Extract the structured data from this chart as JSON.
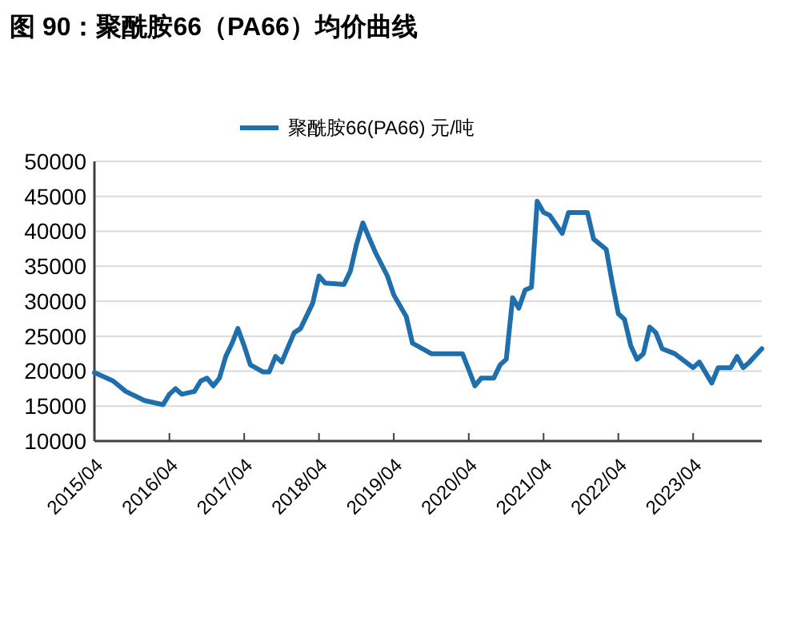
{
  "chart_data": {
    "type": "line",
    "title": "图 90：聚酰胺66（PA66）均价曲线",
    "x": [
      "2015-04",
      "2015-07",
      "2015-09",
      "2015-12",
      "2016-03",
      "2016-04",
      "2016-05",
      "2016-06",
      "2016-08",
      "2016-09",
      "2016-10",
      "2016-11",
      "2016-12",
      "2017-01",
      "2017-02",
      "2017-03",
      "2017-04",
      "2017-05",
      "2017-07",
      "2017-08",
      "2017-09",
      "2017-10",
      "2017-12",
      "2018-01",
      "2018-03",
      "2018-04",
      "2018-05",
      "2018-08",
      "2018-09",
      "2018-10",
      "2018-11",
      "2018-12",
      "2019-01",
      "2019-03",
      "2019-04",
      "2019-06",
      "2019-07",
      "2019-10",
      "2020-03",
      "2020-04",
      "2020-05",
      "2020-06",
      "2020-08",
      "2020-09",
      "2020-10",
      "2020-11",
      "2020-12",
      "2021-01",
      "2021-02",
      "2021-03",
      "2021-04",
      "2021-05",
      "2021-07",
      "2021-08",
      "2021-11",
      "2021-12",
      "2022-02",
      "2022-03",
      "2022-04",
      "2022-05",
      "2022-06",
      "2022-07",
      "2022-08",
      "2022-09",
      "2022-10",
      "2022-11",
      "2023-01",
      "2023-04",
      "2023-05",
      "2023-07",
      "2023-08",
      "2023-10",
      "2023-11",
      "2023-12",
      "2024-01",
      "2024-03"
    ],
    "series": [
      {
        "name": "聚酰胺66(PA66) 元/吨",
        "color": "#1f6fad",
        "values": [
          19800,
          18600,
          17100,
          15800,
          15200,
          16700,
          17500,
          16700,
          17100,
          18600,
          19000,
          17900,
          19000,
          22100,
          24000,
          26100,
          23600,
          20900,
          19900,
          19900,
          22100,
          21300,
          25500,
          26100,
          29700,
          33600,
          32600,
          32400,
          34300,
          38100,
          41200,
          39100,
          37000,
          33600,
          30900,
          27800,
          24000,
          22500,
          22500,
          20200,
          17900,
          19000,
          19000,
          20900,
          21700,
          30500,
          29000,
          31600,
          32000,
          44300,
          42700,
          42300,
          39700,
          42700,
          42700,
          38900,
          37400,
          32800,
          28200,
          27400,
          23600,
          21700,
          22500,
          26300,
          25500,
          23200,
          22500,
          20500,
          21300,
          18300,
          20500,
          20500,
          22100,
          20500,
          21300,
          23200
        ]
      }
    ],
    "xlim": [
      "2015-04",
      "2024-03"
    ],
    "xticks": [
      {
        "value": "2015-04",
        "label": "2015/04"
      },
      {
        "value": "2016-04",
        "label": "2016/04"
      },
      {
        "value": "2017-04",
        "label": "2017/04"
      },
      {
        "value": "2018-04",
        "label": "2018/04"
      },
      {
        "value": "2019-04",
        "label": "2019/04"
      },
      {
        "value": "2020-04",
        "label": "2020/04"
      },
      {
        "value": "2021-04",
        "label": "2021/04"
      },
      {
        "value": "2022-04",
        "label": "2022/04"
      },
      {
        "value": "2023-04",
        "label": "2023/04"
      }
    ],
    "ylim": [
      10000,
      50000
    ],
    "yticks": [
      10000,
      15000,
      20000,
      25000,
      30000,
      35000,
      40000,
      45000,
      50000
    ],
    "grid": "y",
    "legend": "top",
    "marker": "none",
    "line_style": "solid"
  }
}
